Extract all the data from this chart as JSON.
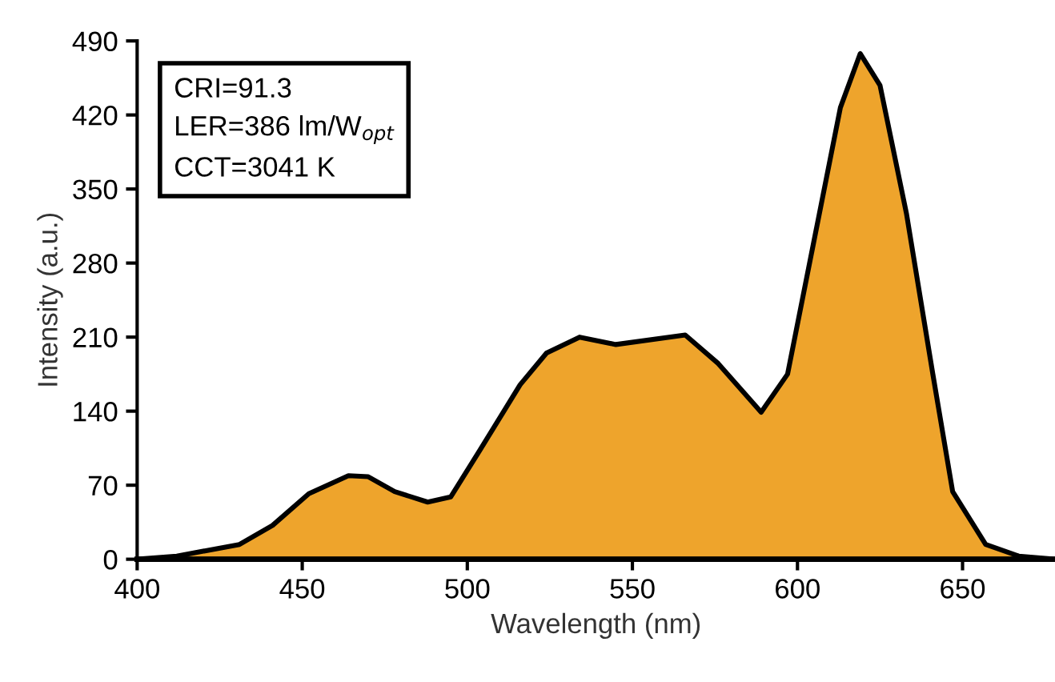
{
  "chart_data": {
    "type": "area",
    "xlabel": "Wavelength (nm)",
    "ylabel": "Intensity (a.u.)",
    "annotations": [
      "CRI=91.3\nLER=386 lm/W$_{opt}$\nCCT=3041 K"
    ],
    "xlim": [
      400,
      678
    ],
    "xticks": [
      400,
      450,
      500,
      550,
      600,
      650
    ],
    "ylim": [
      0,
      490
    ],
    "yticks": [
      0,
      70,
      140,
      210,
      280,
      350,
      420,
      490
    ],
    "grid": false,
    "series": [
      {
        "color": "#eea42c",
        "x": [
          400,
          412,
          431,
          441,
          452,
          464,
          470,
          478,
          488,
          495,
          504,
          516,
          524,
          534,
          545,
          566,
          576,
          589,
          597,
          605,
          613,
          619,
          625,
          633,
          641,
          647,
          657,
          667,
          678
        ],
        "values": [
          0,
          3,
          14,
          32,
          62,
          79,
          78,
          64,
          54,
          59,
          104,
          165,
          195,
          210,
          203,
          212,
          185,
          139,
          175,
          301,
          427,
          478,
          448,
          327,
          175,
          64,
          14,
          3,
          0
        ]
      }
    ]
  }
}
